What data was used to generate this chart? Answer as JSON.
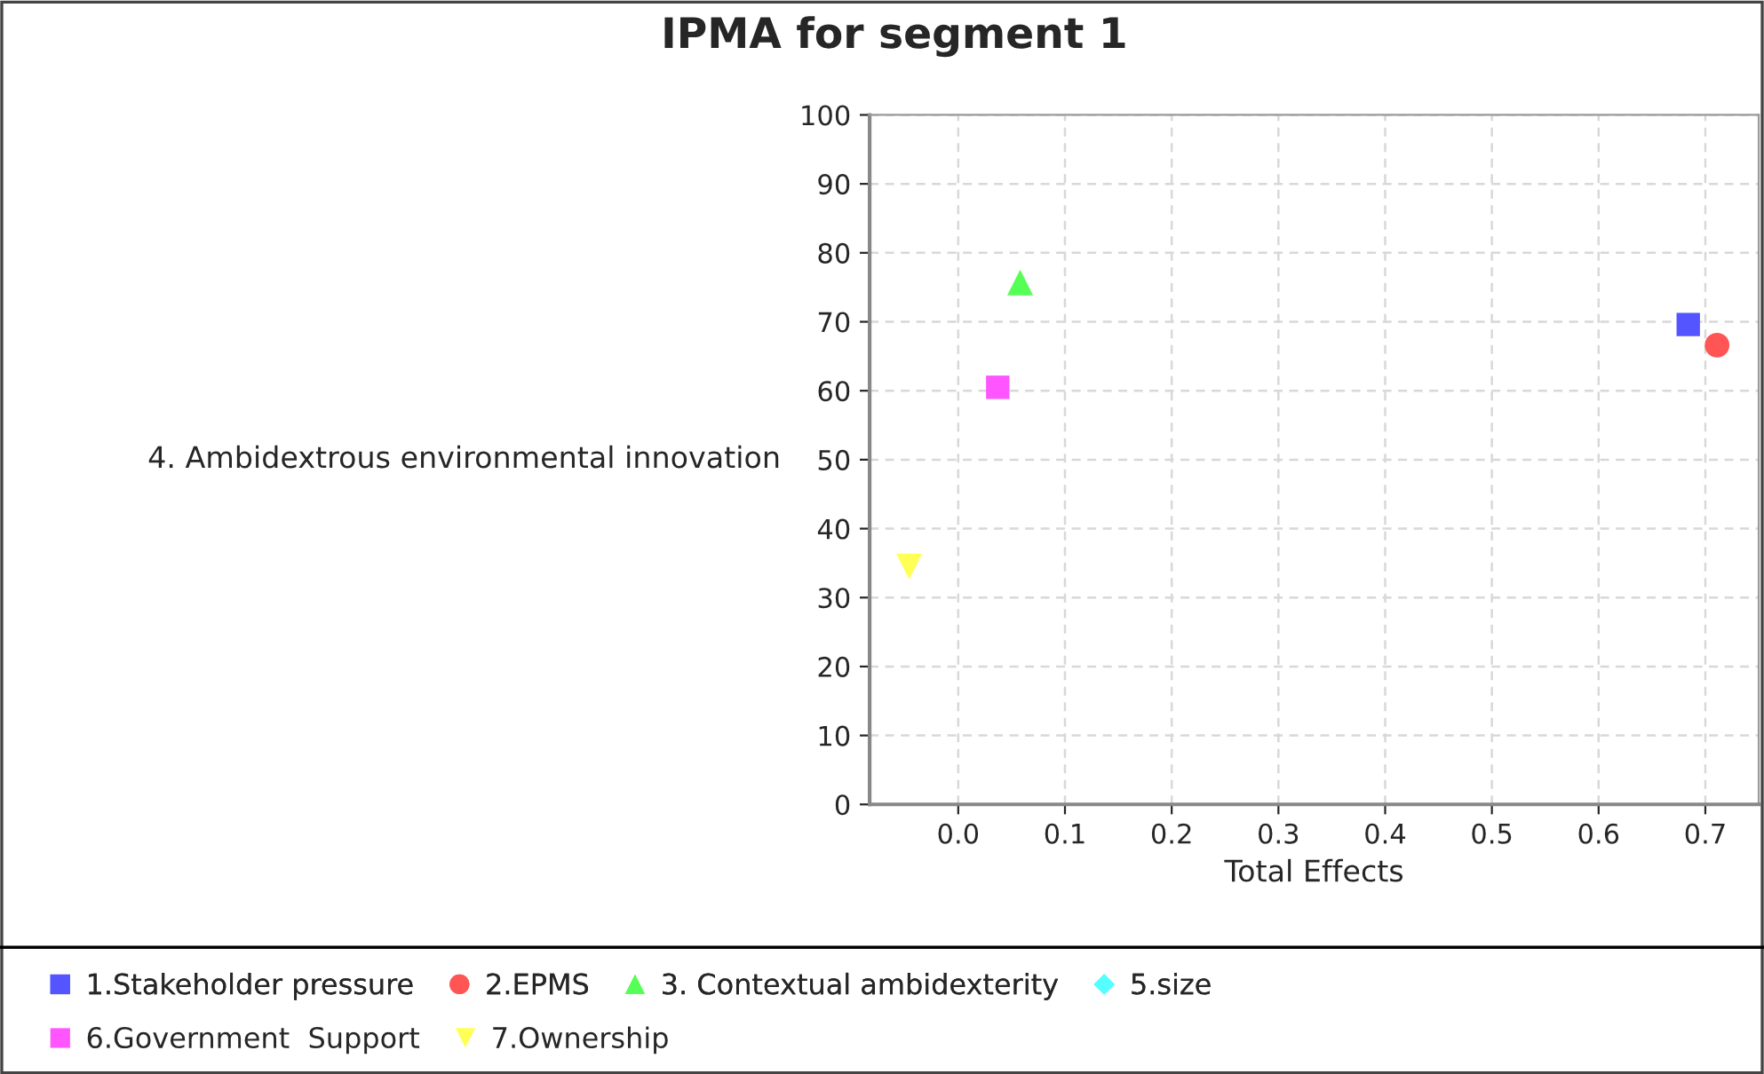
{
  "chart_data": {
    "type": "scatter",
    "title": "IPMA for segment 1",
    "xlabel": "Total Effects",
    "ylabel": "4. Ambidextrous environmental innovation",
    "series": [
      {
        "name": "1.Stakeholder pressure",
        "color": "#5555ff",
        "marker": "square",
        "x": [
          0.684
        ],
        "values": [
          69.6
        ]
      },
      {
        "name": "2.EPMS",
        "color": "#ff5555",
        "marker": "circle",
        "x": [
          0.711
        ],
        "values": [
          66.6
        ]
      },
      {
        "name": "3. Contextual ambidexterity",
        "color": "#55ff55",
        "marker": "triangle",
        "x": [
          0.058
        ],
        "values": [
          75.7
        ]
      },
      {
        "name": "5.size",
        "color": "#55ffff",
        "marker": "diamond",
        "x": [
          null
        ],
        "values": [
          null
        ]
      },
      {
        "name": "6.Government  Support",
        "color": "#ff55ff",
        "marker": "square",
        "x": [
          0.037
        ],
        "values": [
          60.5
        ]
      },
      {
        "name": "7.Ownership",
        "color": "#ffff55",
        "marker": "triangle-down",
        "x": [
          -0.046
        ],
        "values": [
          34.5
        ]
      }
    ],
    "xlim": [
      -0.083,
      0.75
    ],
    "xticks": [
      {
        "value": 0,
        "label": "0.0"
      },
      0.1,
      0.2,
      0.3,
      0.4,
      0.5,
      0.6,
      0.7
    ],
    "ylim": [
      0,
      100
    ],
    "yticks": [
      0,
      10,
      20,
      30,
      40,
      50,
      60,
      70,
      80,
      90,
      100
    ],
    "grid": true,
    "legend": "bottom"
  }
}
